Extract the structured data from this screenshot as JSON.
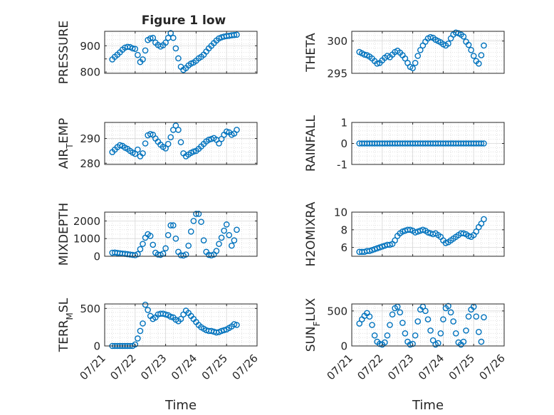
{
  "figure": {
    "title": "Figure 1 low"
  },
  "colors": {
    "marker": "#0072BD",
    "axis": "#262626",
    "grid": "#d9d9d9"
  },
  "chart_data": [
    {
      "id": "pressure",
      "type": "scatter",
      "title": "Figure 1 low",
      "xlabel": "",
      "ylabel": "PRESSURE",
      "ylim": [
        795,
        955
      ],
      "yticks": [
        800,
        850,
        900
      ],
      "yticklabels": [
        "800",
        "",
        "900"
      ],
      "x": [
        "07/21 06:00",
        "07/21 08:00",
        "07/21 10:00",
        "07/21 12:00",
        "07/21 14:00",
        "07/21 16:00",
        "07/21 18:00",
        "07/21 20:00",
        "07/21 22:00",
        "07/22 00:00",
        "07/22 02:00",
        "07/22 04:00",
        "07/22 06:00",
        "07/22 08:00",
        "07/22 10:00",
        "07/22 12:00",
        "07/22 14:00",
        "07/22 16:00",
        "07/22 18:00",
        "07/22 20:00",
        "07/22 22:00",
        "07/23 00:00",
        "07/23 02:00",
        "07/23 04:00",
        "07/23 06:00",
        "07/23 08:00",
        "07/23 10:00",
        "07/23 12:00",
        "07/23 14:00",
        "07/23 16:00",
        "07/23 18:00",
        "07/23 20:00",
        "07/23 22:00",
        "07/24 00:00",
        "07/24 02:00",
        "07/24 04:00",
        "07/24 06:00",
        "07/24 08:00",
        "07/24 10:00",
        "07/24 12:00",
        "07/24 14:00",
        "07/24 16:00",
        "07/24 18:00",
        "07/24 20:00",
        "07/24 22:00",
        "07/25 00:00",
        "07/25 02:00",
        "07/25 04:00",
        "07/25 06:00",
        "07/25 08:00"
      ],
      "y": [
        848,
        858,
        866,
        875,
        885,
        893,
        896,
        895,
        890,
        888,
        865,
        838,
        848,
        882,
        922,
        928,
        930,
        912,
        903,
        897,
        902,
        912,
        930,
        948,
        930,
        890,
        852,
        820,
        808,
        815,
        825,
        832,
        836,
        843,
        852,
        858,
        866,
        878,
        890,
        900,
        910,
        920,
        928,
        932,
        935,
        937,
        938,
        940,
        941,
        942
      ]
    },
    {
      "id": "theta",
      "type": "scatter",
      "xlabel": "",
      "ylabel": "THETA",
      "ylim": [
        295,
        301.5
      ],
      "yticks": [
        295,
        300
      ],
      "yticklabels": [
        "295",
        "300"
      ],
      "x": [
        "07/21 06:00",
        "07/21 08:00",
        "07/21 10:00",
        "07/21 12:00",
        "07/21 14:00",
        "07/21 16:00",
        "07/21 18:00",
        "07/21 20:00",
        "07/21 22:00",
        "07/22 00:00",
        "07/22 02:00",
        "07/22 04:00",
        "07/22 06:00",
        "07/22 08:00",
        "07/22 10:00",
        "07/22 12:00",
        "07/22 14:00",
        "07/22 16:00",
        "07/22 18:00",
        "07/22 20:00",
        "07/22 22:00",
        "07/23 00:00",
        "07/23 02:00",
        "07/23 04:00",
        "07/23 06:00",
        "07/23 08:00",
        "07/23 10:00",
        "07/23 12:00",
        "07/23 14:00",
        "07/23 16:00",
        "07/23 18:00",
        "07/23 20:00",
        "07/23 22:00",
        "07/24 00:00",
        "07/24 02:00",
        "07/24 04:00",
        "07/24 06:00",
        "07/24 08:00",
        "07/24 10:00",
        "07/24 12:00",
        "07/24 14:00",
        "07/24 16:00",
        "07/24 18:00",
        "07/24 20:00",
        "07/24 22:00",
        "07/25 00:00",
        "07/25 02:00",
        "07/25 04:00",
        "07/25 06:00",
        "07/25 08:00"
      ],
      "y": [
        298.3,
        298.1,
        297.9,
        297.8,
        297.6,
        297.3,
        296.9,
        296.5,
        296.6,
        297.0,
        297.4,
        297.7,
        297.5,
        297.9,
        298.3,
        298.5,
        298.2,
        297.8,
        297.3,
        296.6,
        296.0,
        295.8,
        296.6,
        297.7,
        298.6,
        299.3,
        299.9,
        300.4,
        300.6,
        300.5,
        300.2,
        300.0,
        299.8,
        299.5,
        299.3,
        299.6,
        300.4,
        301.0,
        301.3,
        301.2,
        301.0,
        300.7,
        299.9,
        299.4,
        298.6,
        297.7,
        296.9,
        296.5,
        297.8,
        299.3
      ]
    },
    {
      "id": "air_temp",
      "type": "scatter",
      "xlabel": "",
      "ylabel": "AIR_TEMP",
      "ylim": [
        279.5,
        296.5
      ],
      "yticks": [
        280,
        290
      ],
      "yticklabels": [
        "280",
        "290"
      ],
      "x": [
        "07/21 06:00",
        "07/21 08:00",
        "07/21 10:00",
        "07/21 12:00",
        "07/21 14:00",
        "07/21 16:00",
        "07/21 18:00",
        "07/21 20:00",
        "07/21 22:00",
        "07/22 00:00",
        "07/22 02:00",
        "07/22 04:00",
        "07/22 06:00",
        "07/22 08:00",
        "07/22 10:00",
        "07/22 12:00",
        "07/22 14:00",
        "07/22 16:00",
        "07/22 18:00",
        "07/22 20:00",
        "07/22 22:00",
        "07/23 00:00",
        "07/23 02:00",
        "07/23 04:00",
        "07/23 06:00",
        "07/23 08:00",
        "07/23 10:00",
        "07/23 12:00",
        "07/23 14:00",
        "07/23 16:00",
        "07/23 18:00",
        "07/23 20:00",
        "07/23 22:00",
        "07/24 00:00",
        "07/24 02:00",
        "07/24 04:00",
        "07/24 06:00",
        "07/24 08:00",
        "07/24 10:00",
        "07/24 12:00",
        "07/24 14:00",
        "07/24 16:00",
        "07/24 18:00",
        "07/24 20:00",
        "07/24 22:00",
        "07/25 00:00",
        "07/25 02:00",
        "07/25 04:00",
        "07/25 06:00",
        "07/25 08:00"
      ],
      "y": [
        284.5,
        285.5,
        286.5,
        287.3,
        287.0,
        286.3,
        285.8,
        285.0,
        284.3,
        283.8,
        285.5,
        282.8,
        284.0,
        288.0,
        291.3,
        291.8,
        291.5,
        290.0,
        288.7,
        287.5,
        286.6,
        286.0,
        287.8,
        290.5,
        293.5,
        295.2,
        293.5,
        288.5,
        284.0,
        282.8,
        283.5,
        284.2,
        284.7,
        285.0,
        285.8,
        286.8,
        287.8,
        288.8,
        289.5,
        289.8,
        290.2,
        289.5,
        288.0,
        289.8,
        291.5,
        292.8,
        292.5,
        291.5,
        292.0,
        293.5
      ]
    },
    {
      "id": "rainfall",
      "type": "scatter",
      "xlabel": "",
      "ylabel": "RAINFALL",
      "ylim": [
        -1,
        1
      ],
      "yticks": [
        -1,
        0,
        1
      ],
      "yticklabels": [
        "-1",
        "0",
        "1"
      ],
      "x": [
        "07/21 06:00",
        "07/21 08:00",
        "07/21 10:00",
        "07/21 12:00",
        "07/21 14:00",
        "07/21 16:00",
        "07/21 18:00",
        "07/21 20:00",
        "07/21 22:00",
        "07/22 00:00",
        "07/22 02:00",
        "07/22 04:00",
        "07/22 06:00",
        "07/22 08:00",
        "07/22 10:00",
        "07/22 12:00",
        "07/22 14:00",
        "07/22 16:00",
        "07/22 18:00",
        "07/22 20:00",
        "07/22 22:00",
        "07/23 00:00",
        "07/23 02:00",
        "07/23 04:00",
        "07/23 06:00",
        "07/23 08:00",
        "07/23 10:00",
        "07/23 12:00",
        "07/23 14:00",
        "07/23 16:00",
        "07/23 18:00",
        "07/23 20:00",
        "07/23 22:00",
        "07/24 00:00",
        "07/24 02:00",
        "07/24 04:00",
        "07/24 06:00",
        "07/24 08:00",
        "07/24 10:00",
        "07/24 12:00",
        "07/24 14:00",
        "07/24 16:00",
        "07/24 18:00",
        "07/24 20:00",
        "07/24 22:00",
        "07/25 00:00",
        "07/25 02:00",
        "07/25 04:00",
        "07/25 06:00",
        "07/25 08:00"
      ],
      "y": [
        0,
        0,
        0,
        0,
        0,
        0,
        0,
        0,
        0,
        0,
        0,
        0,
        0,
        0,
        0,
        0,
        0,
        0,
        0,
        0,
        0,
        0,
        0,
        0,
        0,
        0,
        0,
        0,
        0,
        0,
        0,
        0,
        0,
        0,
        0,
        0,
        0,
        0,
        0,
        0,
        0,
        0,
        0,
        0,
        0,
        0,
        0,
        0,
        0,
        0
      ]
    },
    {
      "id": "mixdepth",
      "type": "scatter",
      "xlabel": "",
      "ylabel": "MIXDEPTH",
      "ylim": [
        0,
        2500
      ],
      "yticks": [
        0,
        1000,
        2000
      ],
      "yticklabels": [
        "0",
        "1000",
        "2000"
      ],
      "x": [
        "07/21 06:00",
        "07/21 08:00",
        "07/21 10:00",
        "07/21 12:00",
        "07/21 14:00",
        "07/21 16:00",
        "07/21 18:00",
        "07/21 20:00",
        "07/21 22:00",
        "07/22 00:00",
        "07/22 02:00",
        "07/22 04:00",
        "07/22 06:00",
        "07/22 08:00",
        "07/22 10:00",
        "07/22 12:00",
        "07/22 14:00",
        "07/22 16:00",
        "07/22 18:00",
        "07/22 20:00",
        "07/22 22:00",
        "07/23 00:00",
        "07/23 02:00",
        "07/23 04:00",
        "07/23 06:00",
        "07/23 08:00",
        "07/23 10:00",
        "07/23 12:00",
        "07/23 14:00",
        "07/23 16:00",
        "07/23 18:00",
        "07/23 20:00",
        "07/23 22:00",
        "07/24 00:00",
        "07/24 02:00",
        "07/24 04:00",
        "07/24 06:00",
        "07/24 08:00",
        "07/24 10:00",
        "07/24 12:00",
        "07/24 14:00",
        "07/24 16:00",
        "07/24 18:00",
        "07/24 20:00",
        "07/24 22:00",
        "07/25 00:00",
        "07/25 02:00",
        "07/25 04:00",
        "07/25 06:00",
        "07/25 08:00"
      ],
      "y": [
        200,
        210,
        190,
        170,
        150,
        140,
        120,
        100,
        80,
        60,
        120,
        400,
        700,
        1050,
        1250,
        1150,
        650,
        200,
        100,
        80,
        150,
        450,
        1200,
        1750,
        1750,
        1000,
        250,
        60,
        40,
        100,
        600,
        1400,
        2000,
        2400,
        2400,
        1950,
        900,
        250,
        80,
        50,
        100,
        300,
        700,
        1050,
        1450,
        1800,
        1200,
        600,
        900,
        1500
      ]
    },
    {
      "id": "h2omixra",
      "type": "scatter",
      "xlabel": "",
      "ylabel": "H2OMIXRA",
      "ylim": [
        5,
        10
      ],
      "yticks": [
        6,
        8,
        10
      ],
      "yticklabels": [
        "6",
        "8",
        "10"
      ],
      "x": [
        "07/21 06:00",
        "07/21 08:00",
        "07/21 10:00",
        "07/21 12:00",
        "07/21 14:00",
        "07/21 16:00",
        "07/21 18:00",
        "07/21 20:00",
        "07/21 22:00",
        "07/22 00:00",
        "07/22 02:00",
        "07/22 04:00",
        "07/22 06:00",
        "07/22 08:00",
        "07/22 10:00",
        "07/22 12:00",
        "07/22 14:00",
        "07/22 16:00",
        "07/22 18:00",
        "07/22 20:00",
        "07/22 22:00",
        "07/23 00:00",
        "07/23 02:00",
        "07/23 04:00",
        "07/23 06:00",
        "07/23 08:00",
        "07/23 10:00",
        "07/23 12:00",
        "07/23 14:00",
        "07/23 16:00",
        "07/23 18:00",
        "07/23 20:00",
        "07/23 22:00",
        "07/24 00:00",
        "07/24 02:00",
        "07/24 04:00",
        "07/24 06:00",
        "07/24 08:00",
        "07/24 10:00",
        "07/24 12:00",
        "07/24 14:00",
        "07/24 16:00",
        "07/24 18:00",
        "07/24 20:00",
        "07/24 22:00",
        "07/25 00:00",
        "07/25 02:00",
        "07/25 04:00",
        "07/25 06:00",
        "07/25 08:00"
      ],
      "y": [
        5.5,
        5.5,
        5.5,
        5.6,
        5.6,
        5.7,
        5.8,
        5.9,
        6.0,
        6.1,
        6.2,
        6.3,
        6.3,
        6.4,
        6.8,
        7.3,
        7.6,
        7.8,
        7.9,
        8.0,
        8.0,
        7.9,
        7.7,
        7.8,
        7.9,
        8.0,
        7.9,
        7.7,
        7.6,
        7.5,
        7.6,
        7.4,
        7.2,
        6.8,
        6.5,
        6.6,
        6.8,
        7.0,
        7.2,
        7.4,
        7.6,
        7.6,
        7.5,
        7.3,
        7.2,
        7.4,
        7.8,
        8.3,
        8.7,
        9.2
      ]
    },
    {
      "id": "terr_msl",
      "type": "scatter",
      "xlabel": "Time",
      "ylabel": "TERR_MSL",
      "ylim": [
        0,
        560
      ],
      "yticks": [
        0,
        500
      ],
      "yticklabels": [
        "0",
        "500"
      ],
      "xticklabels": [
        "07/21",
        "07/22",
        "07/23",
        "07/24",
        "07/25",
        "07/26"
      ],
      "x": [
        "07/21 06:00",
        "07/21 08:00",
        "07/21 10:00",
        "07/21 12:00",
        "07/21 14:00",
        "07/21 16:00",
        "07/21 18:00",
        "07/21 20:00",
        "07/21 22:00",
        "07/22 00:00",
        "07/22 02:00",
        "07/22 04:00",
        "07/22 06:00",
        "07/22 08:00",
        "07/22 10:00",
        "07/22 12:00",
        "07/22 14:00",
        "07/22 16:00",
        "07/22 18:00",
        "07/22 20:00",
        "07/22 22:00",
        "07/23 00:00",
        "07/23 02:00",
        "07/23 04:00",
        "07/23 06:00",
        "07/23 08:00",
        "07/23 10:00",
        "07/23 12:00",
        "07/23 14:00",
        "07/23 16:00",
        "07/23 18:00",
        "07/23 20:00",
        "07/23 22:00",
        "07/24 00:00",
        "07/24 02:00",
        "07/24 04:00",
        "07/24 06:00",
        "07/24 08:00",
        "07/24 10:00",
        "07/24 12:00",
        "07/24 14:00",
        "07/24 16:00",
        "07/24 18:00",
        "07/24 20:00",
        "07/24 22:00",
        "07/25 00:00",
        "07/25 02:00",
        "07/25 04:00",
        "07/25 06:00",
        "07/25 08:00"
      ],
      "y": [
        0,
        0,
        0,
        0,
        0,
        0,
        0,
        0,
        0,
        20,
        100,
        200,
        300,
        550,
        480,
        400,
        360,
        380,
        420,
        430,
        430,
        420,
        410,
        390,
        380,
        350,
        330,
        360,
        420,
        470,
        440,
        400,
        360,
        320,
        280,
        250,
        230,
        210,
        200,
        200,
        190,
        180,
        185,
        200,
        210,
        220,
        240,
        260,
        290,
        280
      ]
    },
    {
      "id": "sun_flux",
      "type": "scatter",
      "xlabel": "Time",
      "ylabel": "SUN_FLUX",
      "ylim": [
        0,
        600
      ],
      "yticks": [
        0,
        500
      ],
      "yticklabels": [
        "0",
        "500"
      ],
      "xticklabels": [
        "07/21",
        "07/22",
        "07/23",
        "07/24",
        "07/25",
        "07/26"
      ],
      "x": [
        "07/21 06:00",
        "07/21 08:00",
        "07/21 10:00",
        "07/21 12:00",
        "07/21 14:00",
        "07/21 16:00",
        "07/21 18:00",
        "07/21 20:00",
        "07/21 22:00",
        "07/22 00:00",
        "07/22 02:00",
        "07/22 04:00",
        "07/22 06:00",
        "07/22 08:00",
        "07/22 10:00",
        "07/22 12:00",
        "07/22 14:00",
        "07/22 16:00",
        "07/22 18:00",
        "07/22 20:00",
        "07/22 22:00",
        "07/23 00:00",
        "07/23 02:00",
        "07/23 04:00",
        "07/23 06:00",
        "07/23 08:00",
        "07/23 10:00",
        "07/23 12:00",
        "07/23 14:00",
        "07/23 16:00",
        "07/23 18:00",
        "07/23 20:00",
        "07/23 22:00",
        "07/24 00:00",
        "07/24 02:00",
        "07/24 04:00",
        "07/24 06:00",
        "07/24 08:00",
        "07/24 10:00",
        "07/24 12:00",
        "07/24 14:00",
        "07/24 16:00",
        "07/24 18:00",
        "07/24 20:00",
        "07/24 22:00",
        "07/25 00:00",
        "07/25 02:00",
        "07/25 04:00",
        "07/25 06:00",
        "07/25 08:00"
      ],
      "y": [
        320,
        380,
        430,
        470,
        420,
        300,
        150,
        60,
        30,
        20,
        50,
        150,
        300,
        450,
        540,
        560,
        480,
        330,
        180,
        60,
        20,
        30,
        150,
        350,
        520,
        560,
        500,
        380,
        220,
        80,
        20,
        40,
        180,
        380,
        540,
        570,
        480,
        350,
        180,
        50,
        20,
        60,
        220,
        420,
        520,
        560,
        420,
        200,
        60,
        410
      ]
    }
  ]
}
